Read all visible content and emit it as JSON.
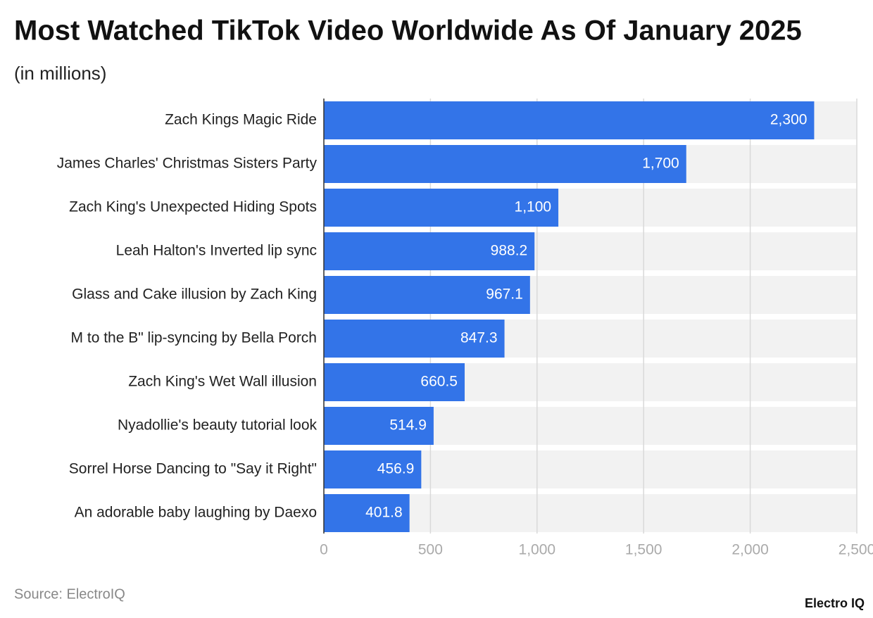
{
  "chart_data": {
    "type": "hbar",
    "title": "Most Watched TikTok Video Worldwide As Of January 2025",
    "subtitle": "(in millions)",
    "categories": [
      "Zach Kings Magic Ride",
      "James Charles' Christmas Sisters Party",
      "Zach King's Unexpected Hiding Spots",
      "Leah Halton's Inverted lip sync",
      "Glass and Cake illusion by Zach King",
      "M to the B\" lip-syncing by Bella Porch",
      "Zach King's Wet Wall illusion",
      "Nyadollie's beauty tutorial look",
      "Sorrel Horse Dancing to \"Say it Right\"",
      "An adorable baby laughing by Daexo"
    ],
    "values": [
      2300,
      1700,
      1100,
      988.2,
      967.1,
      847.3,
      660.5,
      514.9,
      456.9,
      401.8
    ],
    "value_labels": [
      "2,300",
      "1,700",
      "1,100",
      "988.2",
      "967.1",
      "847.3",
      "660.5",
      "514.9",
      "456.9",
      "401.8"
    ],
    "color": "#3374e8",
    "xlim": [
      0,
      2500
    ],
    "xticks": [
      0,
      500,
      {
        "value": 1000,
        "label": "1,000"
      },
      {
        "value": 1500,
        "label": "1,500"
      },
      {
        "value": 2000,
        "label": "2,000"
      },
      {
        "value": 2500,
        "label": "2,500"
      }
    ],
    "grid": true,
    "source": "Source: ElectroIQ",
    "credit": "Electro IQ"
  }
}
